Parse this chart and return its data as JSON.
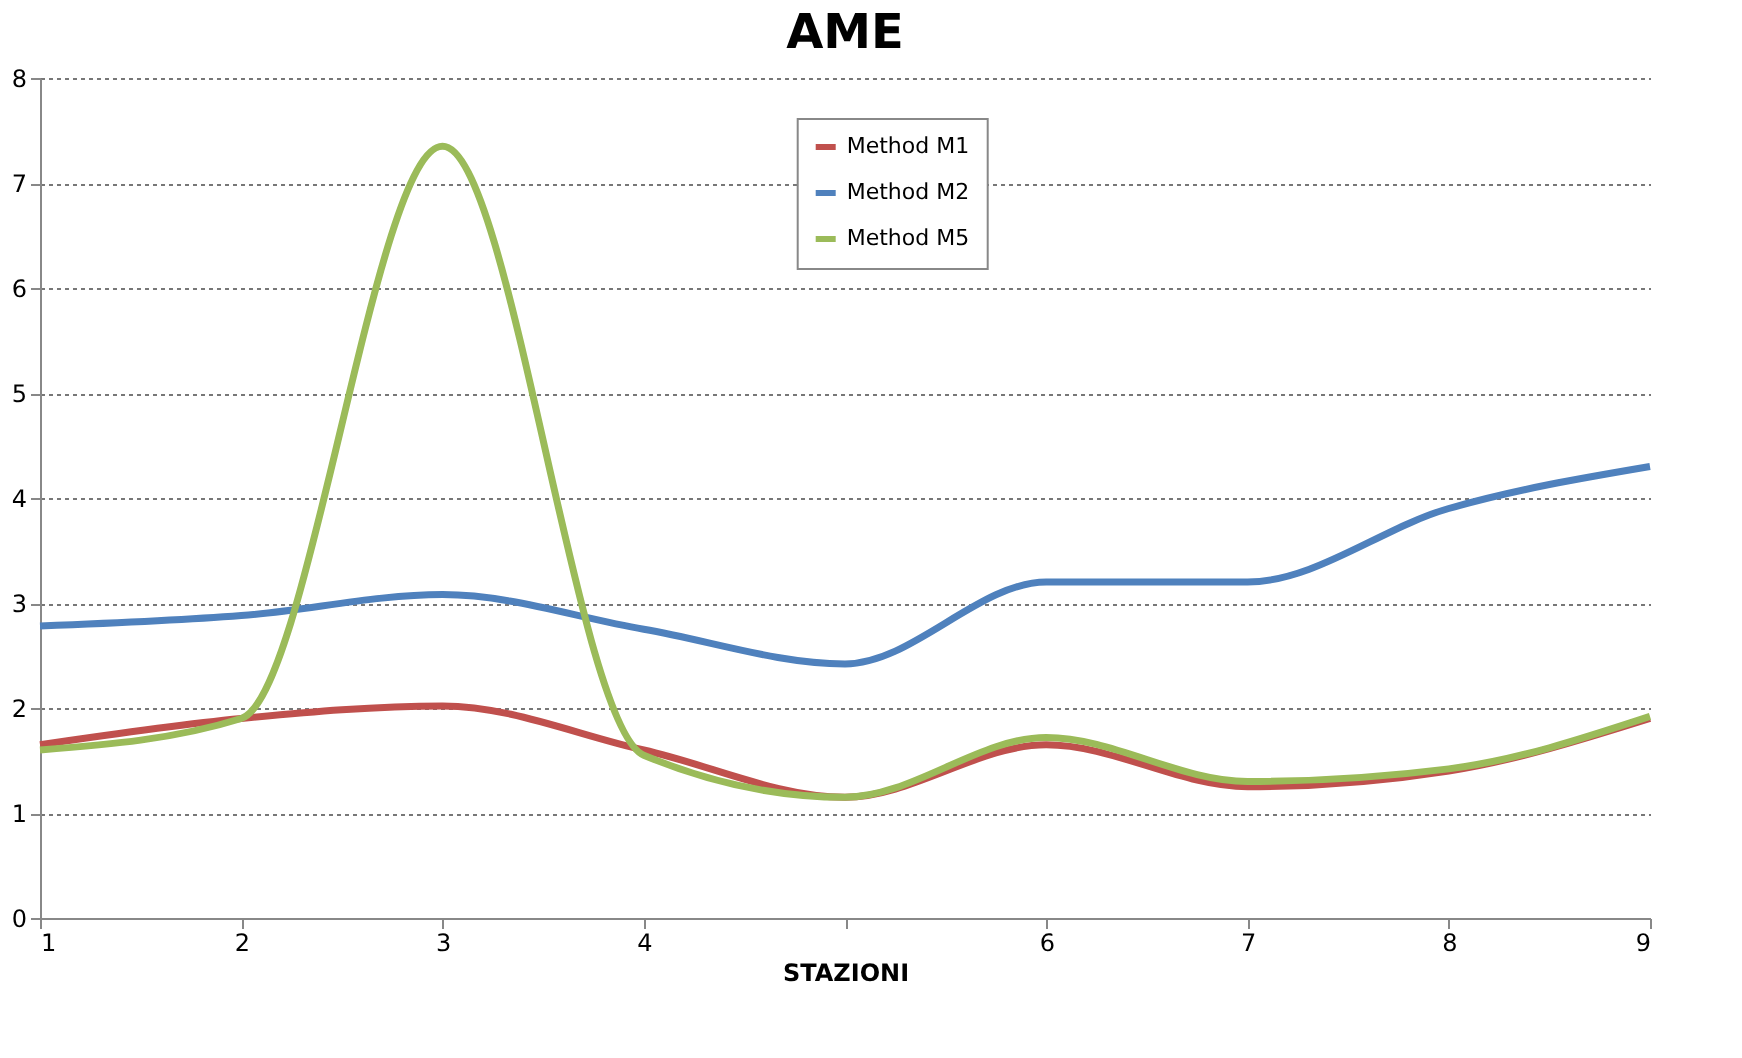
{
  "chart_data": {
    "type": "line",
    "title": "AME",
    "xlabel": "STAZIONI",
    "x": [
      1,
      2,
      3,
      4,
      5,
      6,
      7,
      8,
      9
    ],
    "xlim": [
      1,
      9
    ],
    "xticks": [
      1,
      2,
      3,
      4,
      {
        "value": 5,
        "label": null
      },
      6,
      7,
      8,
      9
    ],
    "ylim": [
      0,
      8
    ],
    "yticks": [
      0,
      1,
      2,
      3,
      4,
      5,
      6,
      7,
      8
    ],
    "grid": "y",
    "legend": "top",
    "line_style": "solid",
    "marker": "none",
    "series": [
      {
        "name": "Method M1",
        "color": "#c0504d",
        "values": [
          1.65,
          1.9,
          2.02,
          1.6,
          1.15,
          1.65,
          1.25,
          1.4,
          1.9
        ]
      },
      {
        "name": "Method M2",
        "color": "#4f81bd",
        "values": [
          2.78,
          2.88,
          3.08,
          2.75,
          2.42,
          3.2,
          3.2,
          3.9,
          4.3
        ]
      },
      {
        "name": "Method M5",
        "color": "#9bbb59",
        "values": [
          1.6,
          1.9,
          7.35,
          1.55,
          1.15,
          1.72,
          1.3,
          1.42,
          1.92
        ]
      }
    ]
  }
}
